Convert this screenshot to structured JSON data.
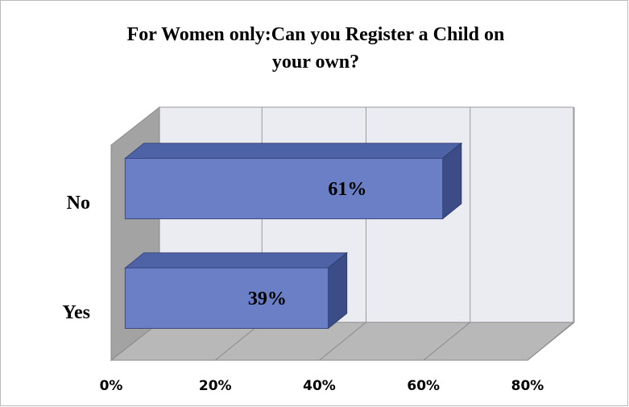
{
  "chart_data": {
    "type": "bar",
    "orientation": "horizontal",
    "style": "3d",
    "title": "For Women only:Can you Register a Child on your own?",
    "title_lines": [
      "For Women only:Can you Register a Child on",
      "your own?"
    ],
    "categories": [
      "No",
      "Yes"
    ],
    "values": [
      61,
      39
    ],
    "value_labels": [
      "61%",
      "39%"
    ],
    "color": "#6a7fc6",
    "xlim": [
      0,
      80
    ],
    "xticks": [
      {
        "value": 0,
        "label": "0%"
      },
      {
        "value": 20,
        "label": "20%"
      },
      {
        "value": 40,
        "label": "40%"
      },
      {
        "value": 60,
        "label": "60%"
      },
      {
        "value": 80,
        "label": "80%"
      }
    ],
    "grid": true
  }
}
